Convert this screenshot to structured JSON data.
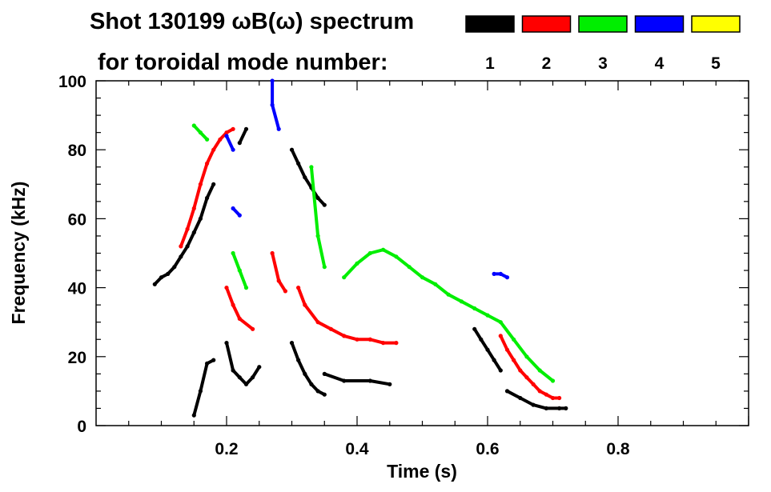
{
  "chart_data": {
    "type": "scatter",
    "title_line1": "Shot 130199 ωB(ω) spectrum",
    "title_line2": "for toroidal mode number:",
    "xlabel": "Time (s)",
    "ylabel": "Frequency (kHz)",
    "xlim": [
      0,
      1.0
    ],
    "ylim": [
      0,
      100
    ],
    "x_ticks": [
      0.2,
      0.4,
      0.6,
      0.8
    ],
    "x_tick_labels": [
      "0.2",
      "0.4",
      "0.6",
      "0.8"
    ],
    "y_ticks": [
      0,
      20,
      40,
      60,
      80,
      100
    ],
    "y_tick_labels": [
      "0",
      "20",
      "40",
      "60",
      "80",
      "100"
    ],
    "legend": [
      {
        "label": "1",
        "color": "#000000"
      },
      {
        "label": "2",
        "color": "#ff0000"
      },
      {
        "label": "3",
        "color": "#00ee00"
      },
      {
        "label": "4",
        "color": "#0000ff"
      },
      {
        "label": "5",
        "color": "#ffff00"
      }
    ],
    "series": [
      {
        "name": "n=1",
        "color": "#000000",
        "segments": [
          [
            [
              0.09,
              41
            ],
            [
              0.1,
              43
            ],
            [
              0.11,
              44
            ],
            [
              0.12,
              46
            ],
            [
              0.13,
              49
            ],
            [
              0.14,
              52
            ],
            [
              0.15,
              56
            ],
            [
              0.16,
              60
            ],
            [
              0.17,
              66
            ],
            [
              0.18,
              70
            ]
          ],
          [
            [
              0.15,
              3
            ],
            [
              0.16,
              10
            ],
            [
              0.17,
              18
            ],
            [
              0.18,
              19
            ]
          ],
          [
            [
              0.2,
              24
            ],
            [
              0.21,
              16
            ],
            [
              0.22,
              14
            ],
            [
              0.23,
              12
            ],
            [
              0.24,
              14
            ],
            [
              0.25,
              17
            ]
          ],
          [
            [
              0.22,
              82
            ],
            [
              0.23,
              86
            ]
          ],
          [
            [
              0.3,
              24
            ],
            [
              0.31,
              19
            ],
            [
              0.32,
              15
            ],
            [
              0.33,
              12
            ],
            [
              0.34,
              10
            ],
            [
              0.35,
              9
            ]
          ],
          [
            [
              0.3,
              80
            ],
            [
              0.31,
              76
            ],
            [
              0.32,
              72
            ],
            [
              0.33,
              69
            ],
            [
              0.34,
              66
            ],
            [
              0.35,
              64
            ]
          ],
          [
            [
              0.35,
              15
            ],
            [
              0.38,
              13
            ],
            [
              0.42,
              13
            ],
            [
              0.45,
              12
            ]
          ],
          [
            [
              0.58,
              28
            ],
            [
              0.59,
              25
            ],
            [
              0.6,
              22
            ],
            [
              0.61,
              19
            ],
            [
              0.62,
              16
            ]
          ],
          [
            [
              0.63,
              10
            ],
            [
              0.65,
              8
            ],
            [
              0.67,
              6
            ],
            [
              0.69,
              5
            ],
            [
              0.71,
              5
            ],
            [
              0.72,
              5
            ]
          ]
        ]
      },
      {
        "name": "n=2",
        "color": "#ff0000",
        "segments": [
          [
            [
              0.13,
              52
            ],
            [
              0.14,
              57
            ],
            [
              0.15,
              63
            ],
            [
              0.16,
              70
            ],
            [
              0.17,
              76
            ],
            [
              0.18,
              80
            ],
            [
              0.19,
              83
            ],
            [
              0.2,
              85
            ],
            [
              0.21,
              86
            ]
          ],
          [
            [
              0.2,
              40
            ],
            [
              0.21,
              35
            ],
            [
              0.22,
              31
            ],
            [
              0.24,
              28
            ]
          ],
          [
            [
              0.27,
              50
            ],
            [
              0.28,
              42
            ],
            [
              0.29,
              39
            ]
          ],
          [
            [
              0.31,
              40
            ],
            [
              0.32,
              35
            ],
            [
              0.34,
              30
            ],
            [
              0.36,
              28
            ],
            [
              0.38,
              26
            ],
            [
              0.4,
              25
            ],
            [
              0.42,
              25
            ]
          ],
          [
            [
              0.42,
              25
            ],
            [
              0.44,
              24
            ],
            [
              0.46,
              24
            ]
          ],
          [
            [
              0.62,
              26
            ],
            [
              0.63,
              22
            ],
            [
              0.64,
              19
            ],
            [
              0.65,
              16
            ],
            [
              0.66,
              14
            ],
            [
              0.67,
              12
            ],
            [
              0.68,
              10
            ],
            [
              0.69,
              9
            ],
            [
              0.7,
              8
            ],
            [
              0.71,
              8
            ]
          ]
        ]
      },
      {
        "name": "n=3",
        "color": "#00ee00",
        "segments": [
          [
            [
              0.15,
              87
            ],
            [
              0.16,
              85
            ],
            [
              0.17,
              83
            ]
          ],
          [
            [
              0.21,
              50
            ],
            [
              0.22,
              45
            ],
            [
              0.23,
              40
            ]
          ],
          [
            [
              0.33,
              75
            ],
            [
              0.34,
              55
            ],
            [
              0.35,
              46
            ]
          ],
          [
            [
              0.38,
              43
            ],
            [
              0.4,
              47
            ],
            [
              0.42,
              50
            ],
            [
              0.44,
              51
            ],
            [
              0.46,
              49
            ],
            [
              0.48,
              46
            ],
            [
              0.5,
              43
            ],
            [
              0.52,
              41
            ],
            [
              0.54,
              38
            ],
            [
              0.56,
              36
            ],
            [
              0.58,
              34
            ],
            [
              0.6,
              32
            ],
            [
              0.62,
              30
            ],
            [
              0.64,
              25
            ],
            [
              0.66,
              20
            ],
            [
              0.68,
              16
            ],
            [
              0.7,
              13
            ]
          ]
        ]
      },
      {
        "name": "n=4",
        "color": "#0000ff",
        "segments": [
          [
            [
              0.27,
              100
            ],
            [
              0.27,
              93
            ],
            [
              0.28,
              86
            ]
          ],
          [
            [
              0.2,
              84
            ],
            [
              0.21,
              80
            ]
          ],
          [
            [
              0.21,
              63
            ],
            [
              0.22,
              61
            ]
          ],
          [
            [
              0.61,
              44
            ],
            [
              0.62,
              44
            ],
            [
              0.63,
              43
            ]
          ]
        ]
      },
      {
        "name": "n=5",
        "color": "#ffff00",
        "segments": []
      }
    ]
  }
}
